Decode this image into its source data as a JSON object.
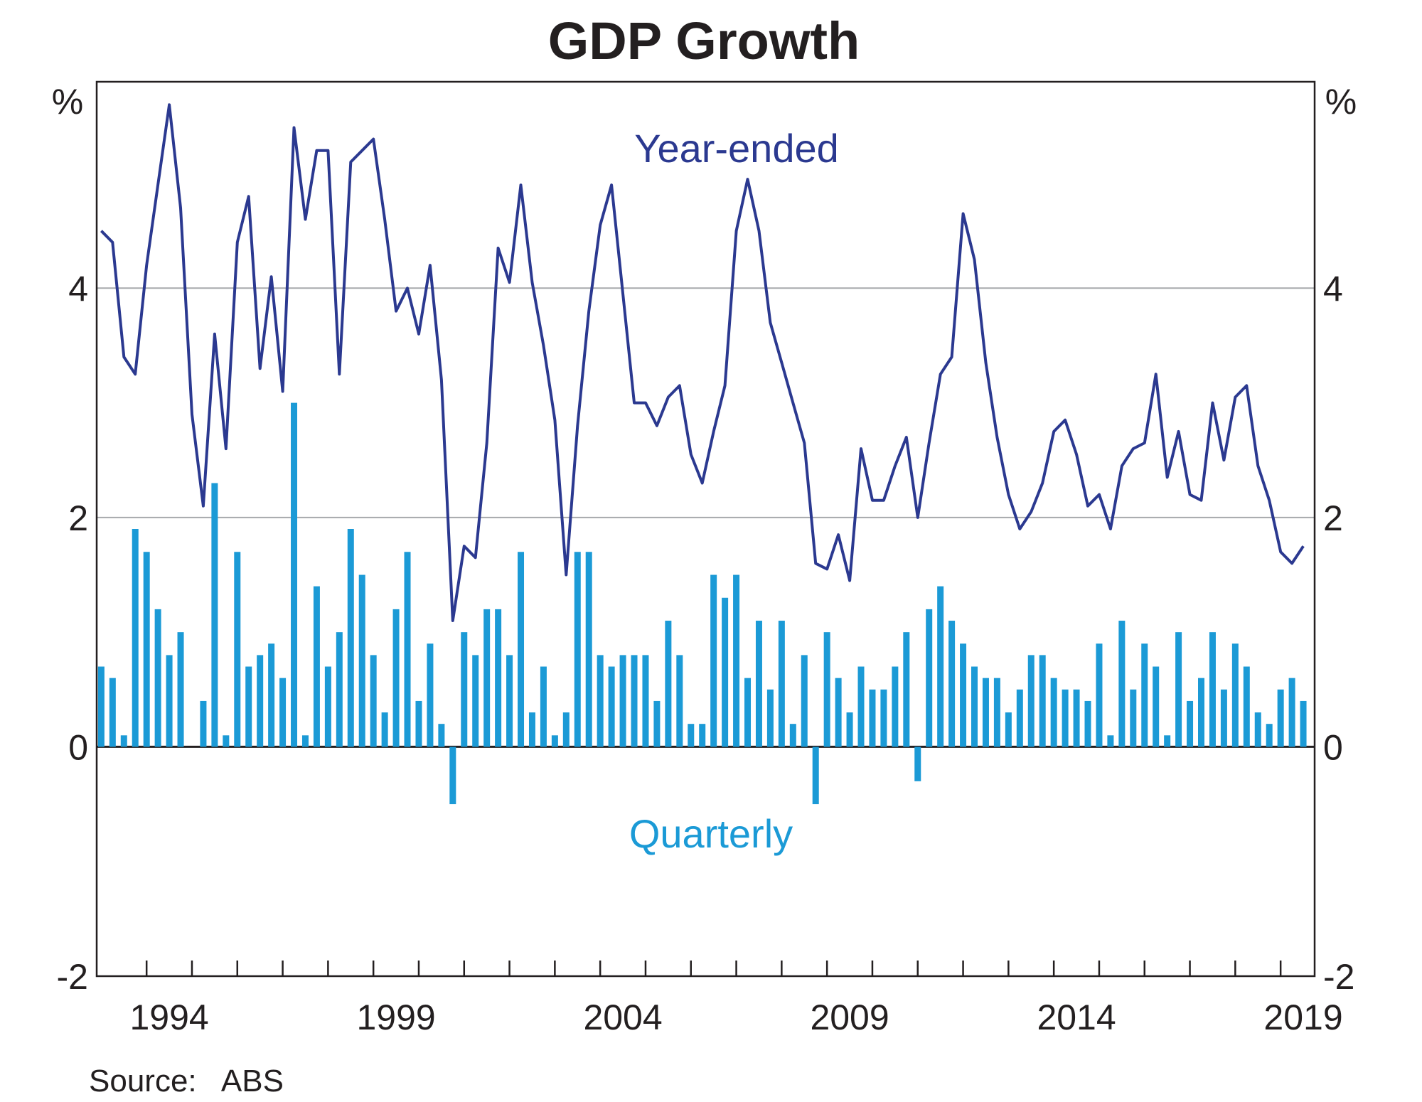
{
  "chart_data": {
    "type": "bar+line",
    "title": "GDP Growth",
    "left_unit": "%",
    "right_unit": "%",
    "ylim": [
      -2,
      5.8
    ],
    "yticks": [
      -2,
      0,
      2,
      4
    ],
    "ytick_labels": [
      "-2",
      "0",
      "2",
      "4"
    ],
    "xlim": [
      1992.9,
      2019.75
    ],
    "x_tick_years": [
      1994,
      1999,
      2004,
      2009,
      2014,
      2019
    ],
    "x_tick_labels": [
      "1994",
      "1999",
      "2004",
      "2009",
      "2014",
      "2019"
    ],
    "start_year": 1993.0,
    "quarter_step": 0.25,
    "source": "Source:   ABS",
    "colors": {
      "year_ended": "#2b3990",
      "quarterly": "#1b9ad6",
      "axis": "#231f20",
      "grid": "#a7a9ac"
    },
    "series": [
      {
        "name": "Year-ended",
        "label": "Year-ended",
        "type": "line",
        "values": [
          4.5,
          4.4,
          3.4,
          3.25,
          4.2,
          4.9,
          5.6,
          4.7,
          2.9,
          2.1,
          3.6,
          2.6,
          4.4,
          4.8,
          3.3,
          4.1,
          3.1,
          5.4,
          4.6,
          5.2,
          5.2,
          3.25,
          5.1,
          5.2,
          5.3,
          4.6,
          3.8,
          4.0,
          3.6,
          4.2,
          3.2,
          1.1,
          1.75,
          1.65,
          2.65,
          4.35,
          4.05,
          4.9,
          4.05,
          3.5,
          2.85,
          1.5,
          2.8,
          3.8,
          4.55,
          4.9,
          3.95,
          3.0,
          3.0,
          2.8,
          3.05,
          3.15,
          2.55,
          2.3,
          2.75,
          3.15,
          4.5,
          4.95,
          4.5,
          3.7,
          3.35,
          3.0,
          2.65,
          1.6,
          1.55,
          1.85,
          1.45,
          2.6,
          2.15,
          2.15,
          2.45,
          2.7,
          2.0,
          2.65,
          3.25,
          3.4,
          4.65,
          4.25,
          3.35,
          2.7,
          2.2,
          1.9,
          2.05,
          2.3,
          2.75,
          2.85,
          2.55,
          2.1,
          2.2,
          1.9,
          2.45,
          2.6,
          2.65,
          3.25,
          2.35,
          2.75,
          2.2,
          2.15,
          3.0,
          2.5,
          3.05,
          3.15,
          2.45,
          2.15,
          1.7,
          1.6,
          1.75
        ]
      },
      {
        "name": "Quarterly",
        "label": "Quarterly",
        "type": "bar",
        "values": [
          0.7,
          0.6,
          0.1,
          1.9,
          1.7,
          1.2,
          0.8,
          1.0,
          0.0,
          0.4,
          2.3,
          0.1,
          1.7,
          0.7,
          0.8,
          0.9,
          0.6,
          3.0,
          0.1,
          1.4,
          0.7,
          1.0,
          1.9,
          1.5,
          0.8,
          0.3,
          1.2,
          1.7,
          0.4,
          0.9,
          0.2,
          -0.5,
          1.0,
          0.8,
          1.2,
          1.2,
          0.8,
          1.7,
          0.3,
          0.7,
          0.1,
          0.3,
          1.7,
          1.7,
          0.8,
          0.7,
          0.8,
          0.8,
          0.8,
          0.4,
          1.1,
          0.8,
          0.2,
          0.2,
          1.5,
          1.3,
          1.5,
          0.6,
          1.1,
          0.5,
          1.1,
          0.2,
          0.8,
          -0.5,
          1.0,
          0.6,
          0.3,
          0.7,
          0.5,
          0.5,
          0.7,
          1.0,
          -0.3,
          1.2,
          1.4,
          1.1,
          0.9,
          0.7,
          0.6,
          0.6,
          0.3,
          0.5,
          0.8,
          0.8,
          0.6,
          0.5,
          0.5,
          0.4,
          0.9,
          0.1,
          1.1,
          0.5,
          0.9,
          0.7,
          0.1,
          1.0,
          0.4,
          0.6,
          1.0,
          0.5,
          0.9,
          0.7,
          0.3,
          0.2,
          0.5,
          0.6,
          0.4
        ]
      }
    ]
  }
}
